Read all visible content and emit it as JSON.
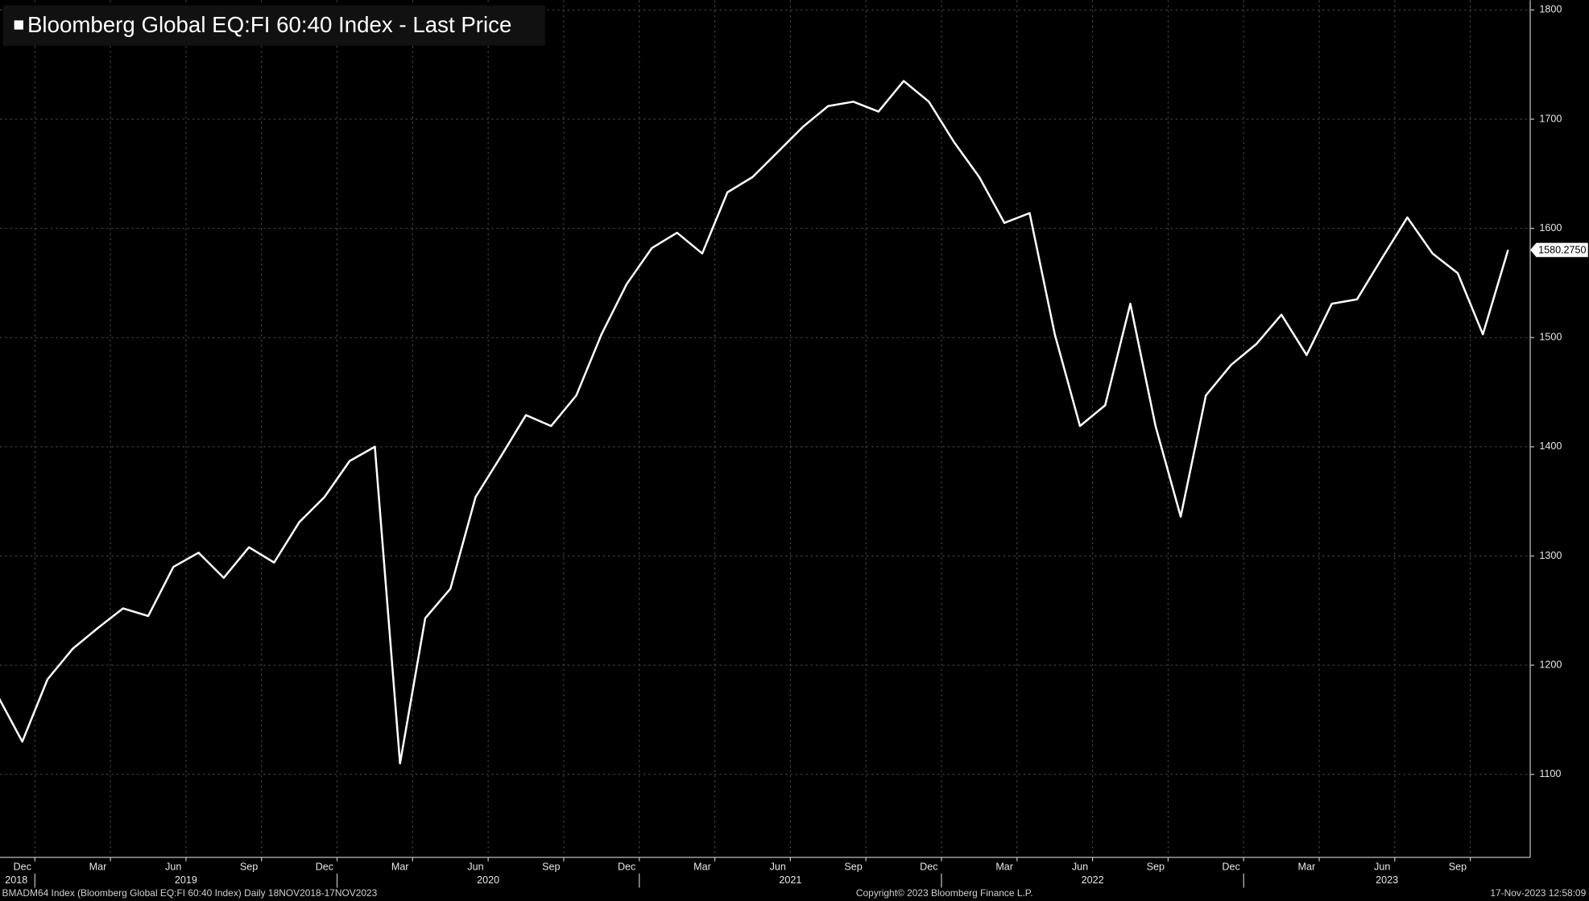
{
  "chart_data": {
    "type": "line",
    "title": "Bloomberg Global EQ:FI 60:40 Index - Last Price",
    "footer_left": "BMADM64 Index (Bloomberg Global EQ:FI 60:40 Index)  Daily 18NOV2018-17NOV2023",
    "footer_center": "Copyright© 2023 Bloomberg Finance L.P.",
    "footer_right": "17-Nov-2023 12:58:09",
    "x": [
      "2018-11",
      "2018-12",
      "2019-01",
      "2019-02",
      "2019-03",
      "2019-04",
      "2019-05",
      "2019-06",
      "2019-07",
      "2019-08",
      "2019-09",
      "2019-10",
      "2019-11",
      "2019-12",
      "2020-01",
      "2020-02",
      "2020-03",
      "2020-04",
      "2020-05",
      "2020-06",
      "2020-07",
      "2020-08",
      "2020-09",
      "2020-10",
      "2020-11",
      "2020-12",
      "2021-01",
      "2021-02",
      "2021-03",
      "2021-04",
      "2021-05",
      "2021-06",
      "2021-07",
      "2021-08",
      "2021-09",
      "2021-10",
      "2021-11",
      "2021-12",
      "2022-01",
      "2022-02",
      "2022-03",
      "2022-04",
      "2022-05",
      "2022-06",
      "2022-07",
      "2022-08",
      "2022-09",
      "2022-10",
      "2022-11",
      "2022-12",
      "2023-01",
      "2023-02",
      "2023-03",
      "2023-04",
      "2023-05",
      "2023-06",
      "2023-07",
      "2023-08",
      "2023-09",
      "2023-10",
      "2023-11"
    ],
    "series": [
      {
        "name": "Bloomberg Global EQ:FI 60:40 Index - Last Price",
        "color": "#ffffff",
        "values": [
          1173,
          1130,
          1187,
          1215,
          1234,
          1252,
          1245,
          1290,
          1303,
          1280,
          1308,
          1294,
          1331,
          1354,
          1387,
          1400,
          1110,
          1243,
          1270,
          1354,
          1391,
          1429,
          1419,
          1447,
          1503,
          1549,
          1582,
          1596,
          1577,
          1633,
          1647,
          1670,
          1693,
          1712,
          1716,
          1707,
          1735,
          1716,
          1679,
          1647,
          1605,
          1614,
          1503,
          1419,
          1438,
          1531,
          1419,
          1336,
          1447,
          1475,
          1494,
          1521,
          1484,
          1531,
          1535,
          1573,
          1610,
          1577,
          1559,
          1503,
          1580.275
        ]
      }
    ],
    "last_price": {
      "value": 1580.275,
      "label": "1580.2750"
    },
    "xlim": [
      "2018-11",
      "2023-11"
    ],
    "xticks": [
      {
        "value": "2018-12",
        "label": "Dec"
      },
      {
        "value": "2019-03",
        "label": "Mar"
      },
      {
        "value": "2019-06",
        "label": "Jun"
      },
      {
        "value": "2019-09",
        "label": "Sep"
      },
      {
        "value": "2019-12",
        "label": "Dec"
      },
      {
        "value": "2020-03",
        "label": "Mar"
      },
      {
        "value": "2020-06",
        "label": "Jun"
      },
      {
        "value": "2020-09",
        "label": "Sep"
      },
      {
        "value": "2020-12",
        "label": "Dec"
      },
      {
        "value": "2021-03",
        "label": "Mar"
      },
      {
        "value": "2021-06",
        "label": "Jun"
      },
      {
        "value": "2021-09",
        "label": "Sep"
      },
      {
        "value": "2021-12",
        "label": "Dec"
      },
      {
        "value": "2022-03",
        "label": "Mar"
      },
      {
        "value": "2022-06",
        "label": "Jun"
      },
      {
        "value": "2022-09",
        "label": "Sep"
      },
      {
        "value": "2022-12",
        "label": "Dec"
      },
      {
        "value": "2023-03",
        "label": "Mar"
      },
      {
        "value": "2023-06",
        "label": "Jun"
      },
      {
        "value": "2023-09",
        "label": "Sep"
      }
    ],
    "years": [
      "2018",
      "2019",
      "2020",
      "2021",
      "2022",
      "2023"
    ],
    "ylim": [
      1025,
      1809
    ],
    "yticks": [
      1100,
      1200,
      1300,
      1400,
      1500,
      1600,
      1700,
      1800
    ],
    "grid": true
  }
}
